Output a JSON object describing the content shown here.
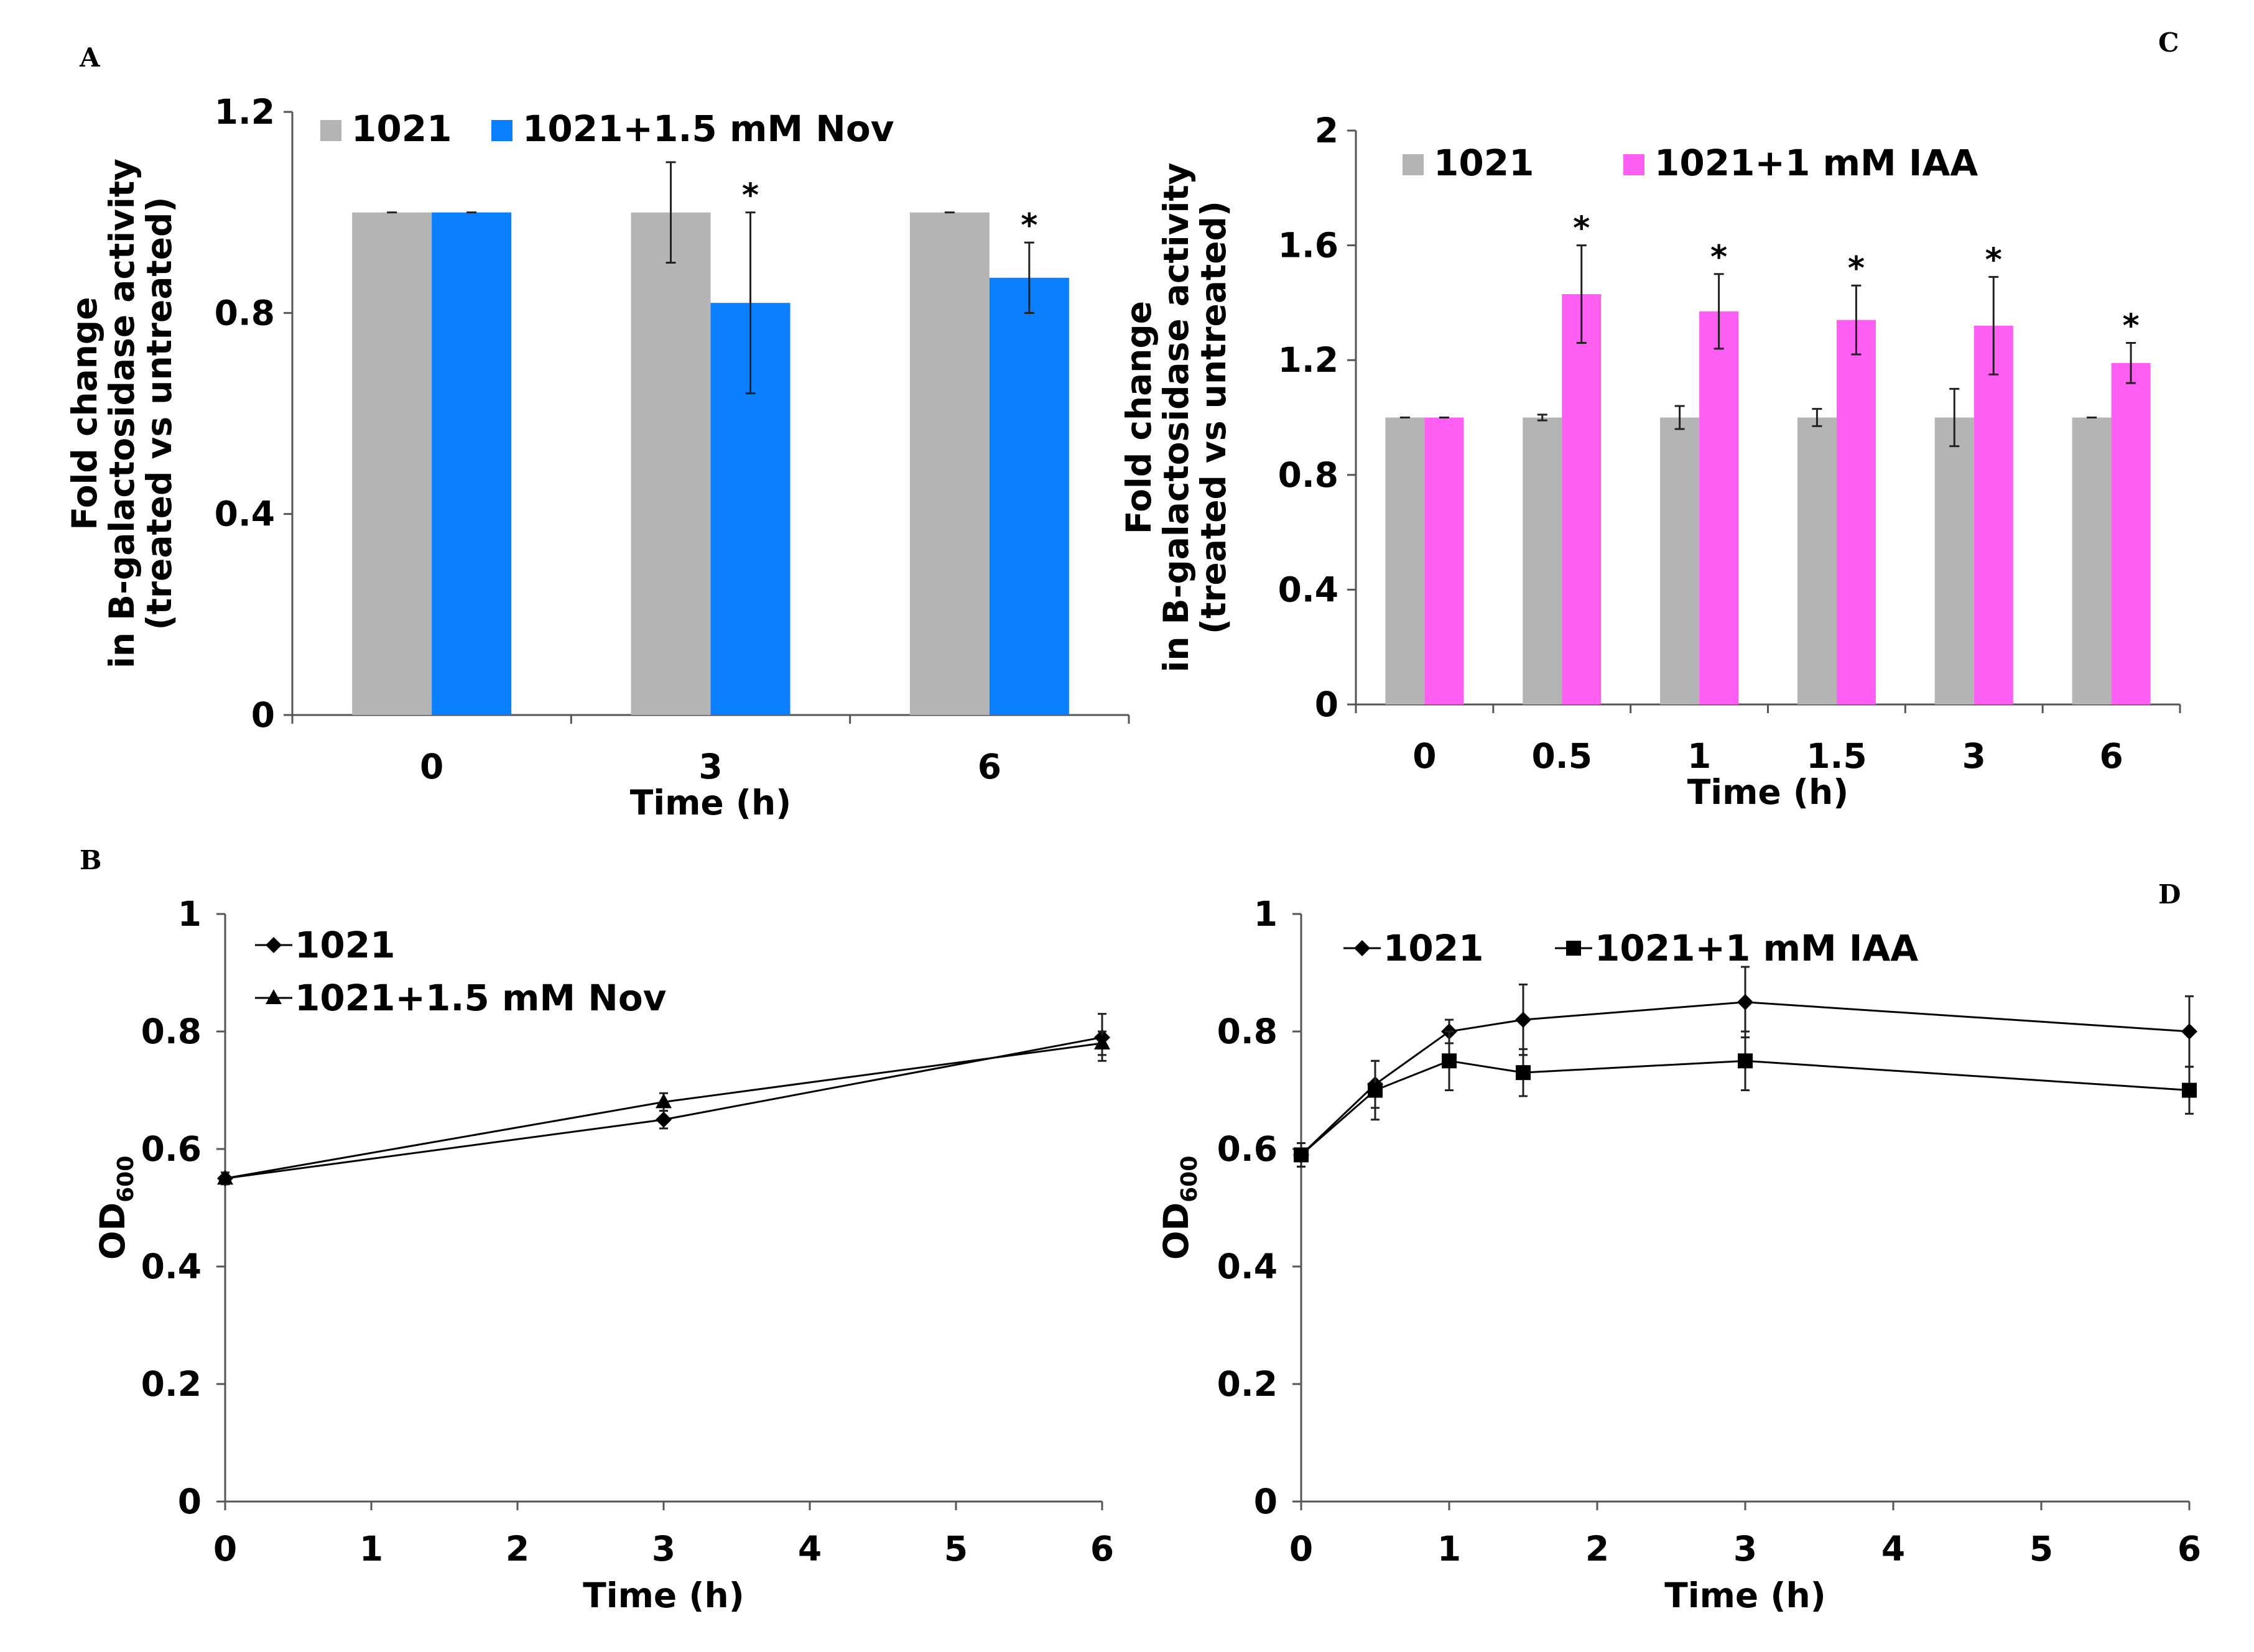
{
  "chart_data": [
    {
      "panel": "A",
      "type": "bar",
      "categories": [
        "0",
        "3",
        "6"
      ],
      "series": [
        {
          "name": "1021",
          "color": "#b4b4b4",
          "values": [
            1.0,
            1.0,
            1.0
          ],
          "errors": [
            0.0,
            0.1,
            0.0
          ],
          "sig": [
            false,
            false,
            false
          ]
        },
        {
          "name": "1021+1.5 mM Nov",
          "color": "#0a7fff",
          "values": [
            1.0,
            0.82,
            0.87
          ],
          "errors": [
            0.0,
            0.18,
            0.07
          ],
          "sig": [
            false,
            true,
            true
          ]
        }
      ],
      "ylabel_lines": [
        "Fold change",
        "in B-galactosidase activity",
        "(treated vs untreated)"
      ],
      "xlabel": "Time (h)",
      "ylim": [
        0,
        1.2
      ],
      "yticks": [
        "0",
        "0.4",
        "0.8",
        "1.2"
      ],
      "star": "*"
    },
    {
      "panel": "C",
      "type": "bar",
      "categories": [
        "0",
        "0.5",
        "1",
        "1.5",
        "3",
        "6"
      ],
      "series": [
        {
          "name": "1021",
          "color": "#b4b4b4",
          "values": [
            1.0,
            1.0,
            1.0,
            1.0,
            1.0,
            1.0
          ],
          "errors": [
            0.0,
            0.01,
            0.04,
            0.03,
            0.1,
            0.0
          ],
          "sig": [
            false,
            false,
            false,
            false,
            false,
            false
          ]
        },
        {
          "name": "1021+1 mM IAA",
          "color": "#ff5ef3",
          "values": [
            1.0,
            1.43,
            1.37,
            1.34,
            1.32,
            1.19
          ],
          "errors": [
            0.0,
            0.17,
            0.13,
            0.12,
            0.17,
            0.07
          ],
          "sig": [
            false,
            true,
            true,
            true,
            true,
            true
          ]
        }
      ],
      "ylabel_lines": [
        "Fold change",
        "in B-galactosidase activity",
        "(treated vs untreated)"
      ],
      "xlabel": "Time (h)",
      "ylim": [
        0,
        2
      ],
      "yticks": [
        "0",
        "0.4",
        "0.8",
        "1.2",
        "1.6",
        "2"
      ],
      "star": "*"
    },
    {
      "panel": "B",
      "type": "line",
      "xlim": [
        0,
        6
      ],
      "xticks": [
        "0",
        "1",
        "2",
        "3",
        "4",
        "5",
        "6"
      ],
      "ylim": [
        0,
        1
      ],
      "yticks": [
        "0",
        "0.2",
        "0.4",
        "0.6",
        "0.8",
        "1"
      ],
      "ylabel_main": "OD",
      "ylabel_sub": "600",
      "xlabel": "Time (h)",
      "series": [
        {
          "name": "1021",
          "marker": "diamond",
          "x": [
            0,
            3,
            6
          ],
          "y": [
            0.55,
            0.65,
            0.79
          ],
          "errors": [
            0.01,
            0.015,
            0.04
          ]
        },
        {
          "name": "1021+1.5 mM Nov",
          "marker": "triangle",
          "x": [
            0,
            3,
            6
          ],
          "y": [
            0.55,
            0.68,
            0.78
          ],
          "errors": [
            0.01,
            0.015,
            0.02
          ]
        }
      ]
    },
    {
      "panel": "D",
      "type": "line",
      "xlim": [
        0,
        6
      ],
      "xticks": [
        "0",
        "1",
        "2",
        "3",
        "4",
        "5",
        "6"
      ],
      "ylim": [
        0,
        1
      ],
      "yticks": [
        "0",
        "0.2",
        "0.4",
        "0.6",
        "0.8",
        "1"
      ],
      "ylabel_main": "OD",
      "ylabel_sub": "600",
      "xlabel": "Time (h)",
      "series": [
        {
          "name": "1021",
          "marker": "diamond",
          "x": [
            0,
            0.5,
            1,
            1.5,
            3,
            6
          ],
          "y": [
            0.59,
            0.71,
            0.8,
            0.82,
            0.85,
            0.8
          ],
          "errors": [
            0.02,
            0.04,
            0.02,
            0.06,
            0.06,
            0.06
          ]
        },
        {
          "name": "1021+1 mM IAA",
          "marker": "square",
          "x": [
            0,
            0.5,
            1,
            1.5,
            3,
            6
          ],
          "y": [
            0.59,
            0.7,
            0.75,
            0.73,
            0.75,
            0.7
          ],
          "errors": [
            0.02,
            0.05,
            0.05,
            0.04,
            0.05,
            0.04
          ]
        }
      ]
    }
  ]
}
